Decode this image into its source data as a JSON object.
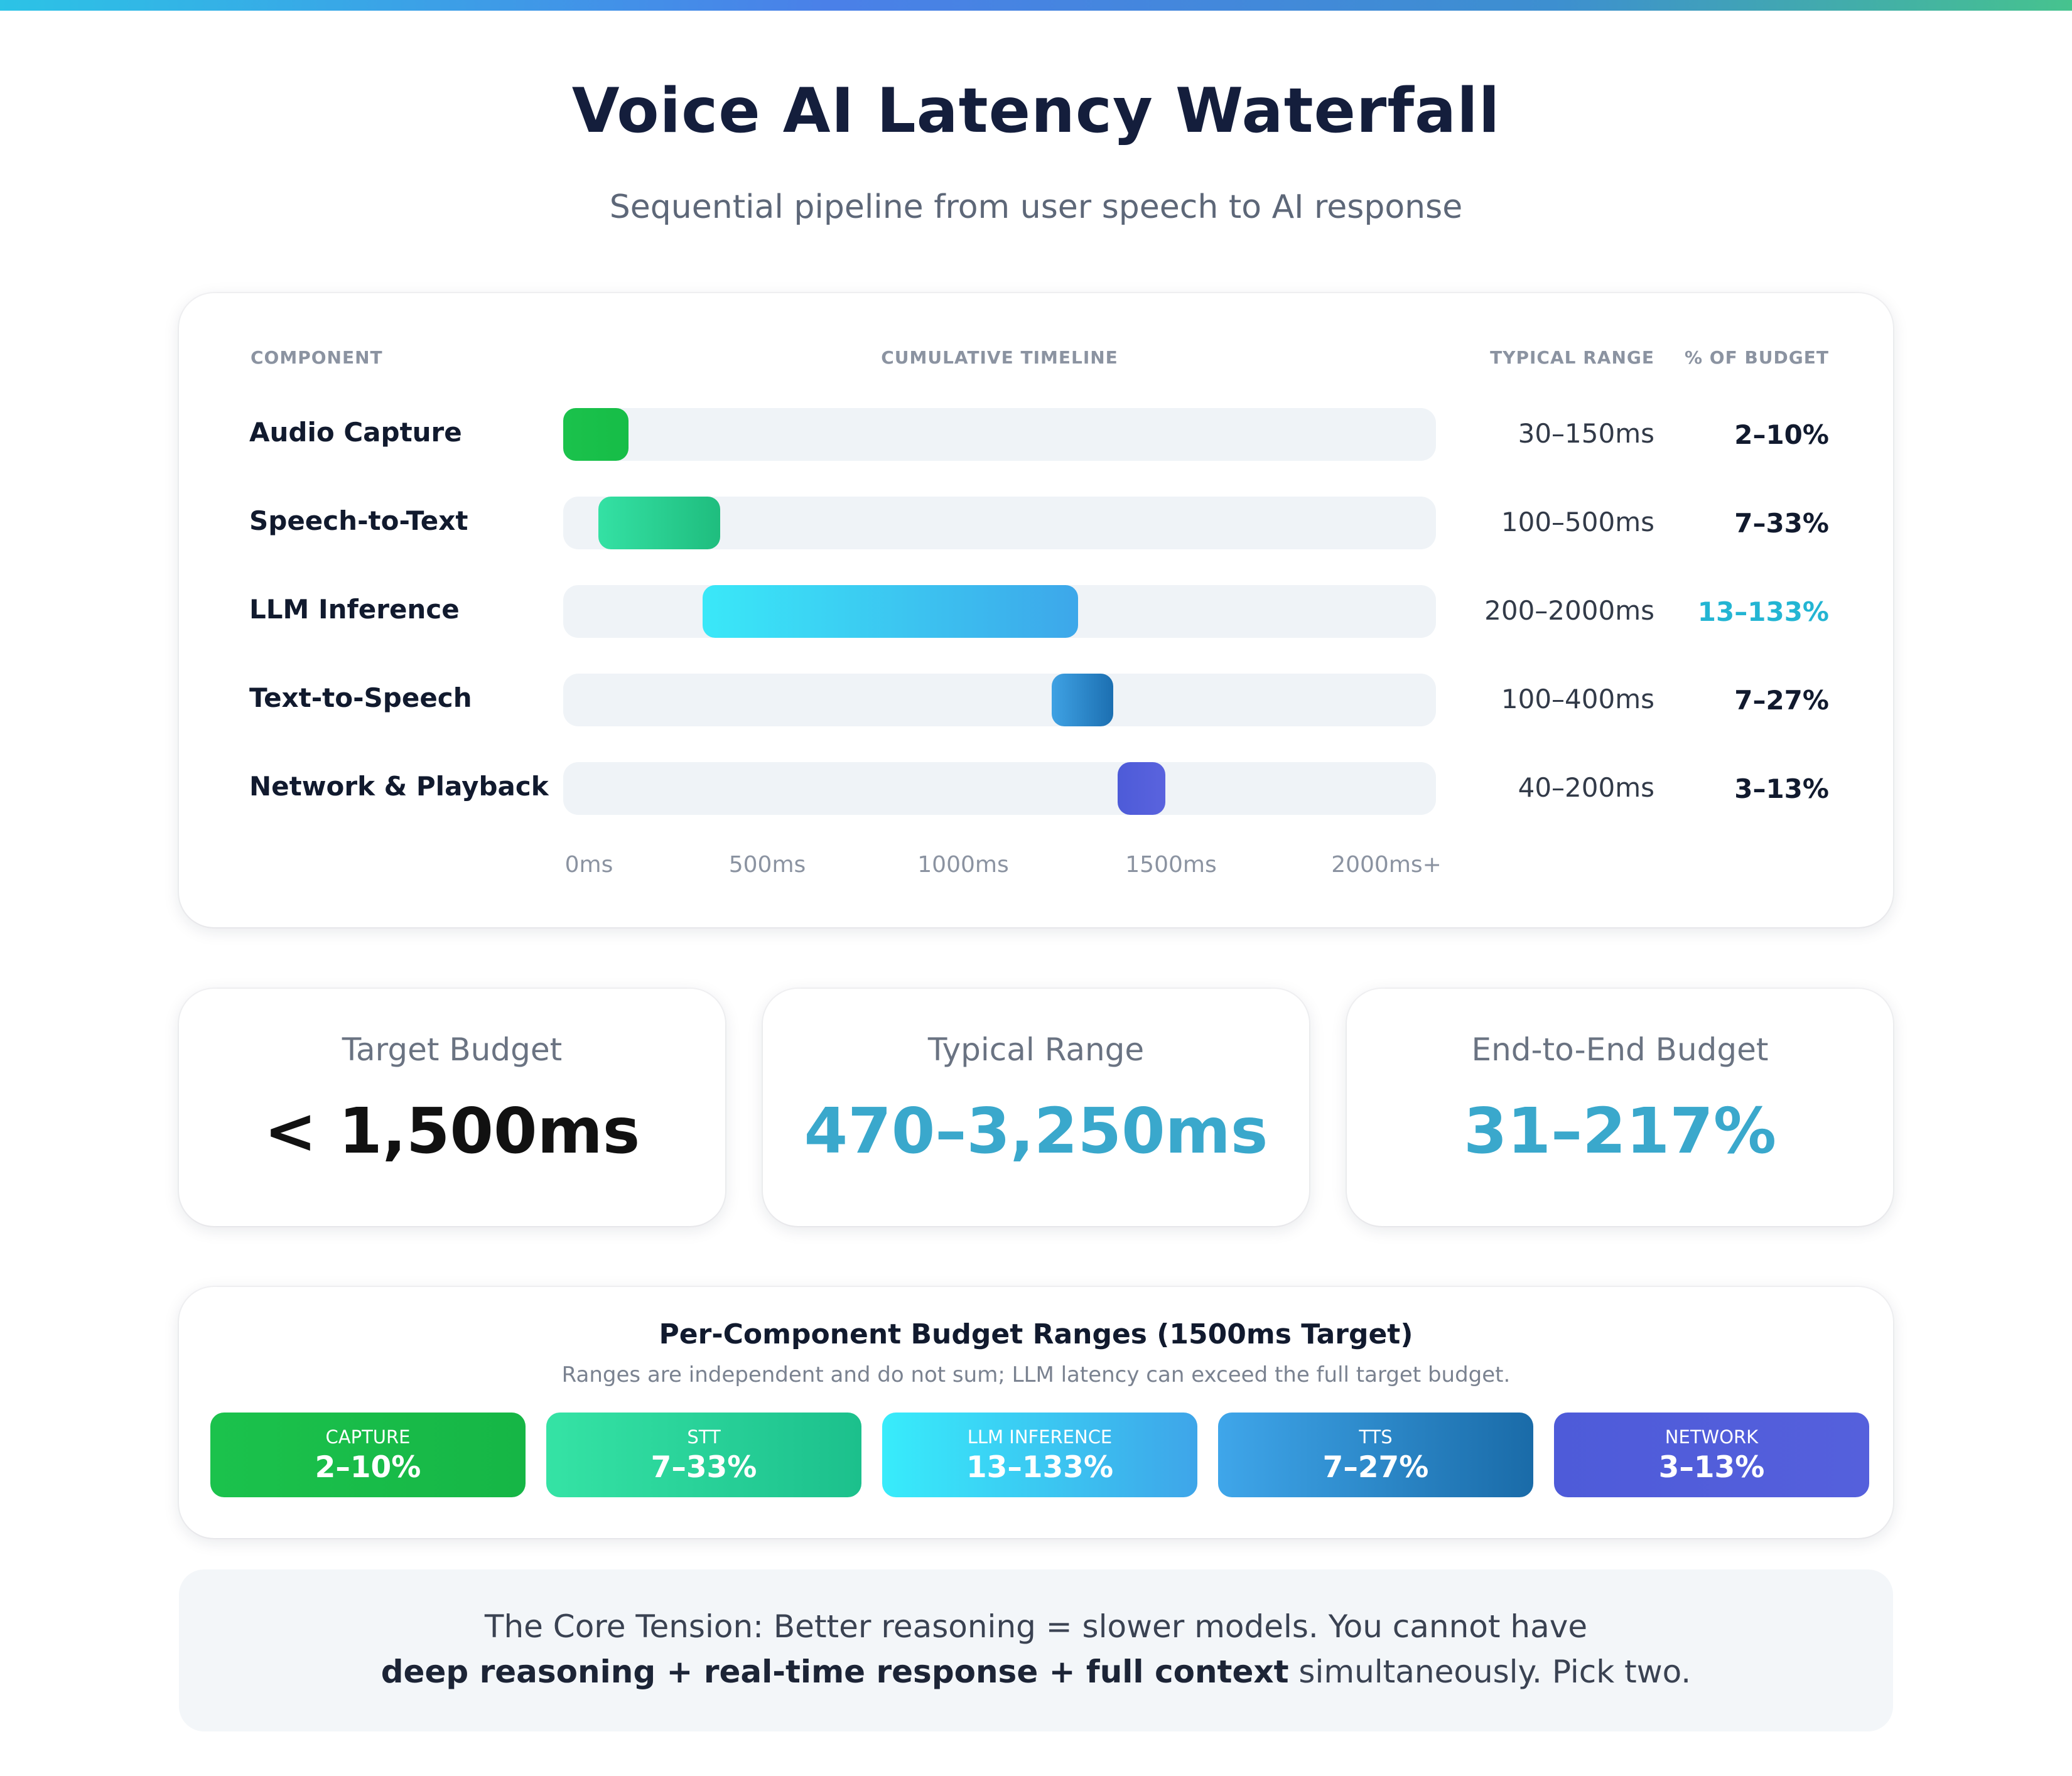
{
  "title": "Voice AI Latency Waterfall",
  "subtitle": "Sequential pipeline from user speech to AI response",
  "columns": {
    "component": "COMPONENT",
    "timeline": "CUMULATIVE TIMELINE",
    "range": "TYPICAL RANGE",
    "budget": "% OF BUDGET"
  },
  "chart_data": {
    "type": "bar",
    "title": "Voice AI Latency Waterfall",
    "xlabel": "",
    "ylabel": "",
    "xlim": [
      0,
      2000
    ],
    "x_ticks": [
      "0ms",
      "500ms",
      "1000ms",
      "1500ms",
      "2000ms+"
    ],
    "series": [
      {
        "name": "Audio Capture",
        "start": 0,
        "end": 150,
        "range": "30–150ms",
        "budget": "2–10%",
        "color": "#1bc24c",
        "color2": "#16bd47"
      },
      {
        "name": "Speech-to-Text",
        "start": 80,
        "end": 360,
        "range": "100–500ms",
        "budget": "7–33%",
        "color": "#34e1a4",
        "color2": "#1fbd7e"
      },
      {
        "name": "LLM Inference",
        "start": 320,
        "end": 1180,
        "range": "200–2000ms",
        "budget": "13–133%",
        "color": "#3ae8f8",
        "color2": "#3da7ea",
        "highlight": true
      },
      {
        "name": "Text-to-Speech",
        "start": 1120,
        "end": 1260,
        "range": "100–400ms",
        "budget": "7–27%",
        "color": "#3fa2e4",
        "color2": "#1c6fb1"
      },
      {
        "name": "Network & Playback",
        "start": 1270,
        "end": 1380,
        "range": "40–200ms",
        "budget": "3–13%",
        "color": "#4d5bd8",
        "color2": "#5a63de"
      }
    ]
  },
  "stats": [
    {
      "label": "Target Budget",
      "value": "< 1,500ms",
      "style": "dark"
    },
    {
      "label": "Typical Range",
      "value": "470–3,250ms",
      "style": "teal"
    },
    {
      "label": "End-to-End Budget",
      "value": "31–217%",
      "style": "teal"
    }
  ],
  "budget_ranges": {
    "title": "Per-Component Budget Ranges (1500ms Target)",
    "subtitle": "Ranges are independent and do not sum; LLM latency can exceed the full target budget.",
    "chips": [
      {
        "name": "CAPTURE",
        "value": "2–10%",
        "color": "#1bc24c",
        "color2": "#16b646"
      },
      {
        "name": "STT",
        "value": "7–33%",
        "color": "#35e3a5",
        "color2": "#1cc08c"
      },
      {
        "name": "LLM INFERENCE",
        "value": "13–133%",
        "color": "#38ecfb",
        "color2": "#3ea5e9"
      },
      {
        "name": "TTS",
        "value": "7–27%",
        "color": "#3fa6ea",
        "color2": "#1a6ba8"
      },
      {
        "name": "NETWORK",
        "value": "3–13%",
        "color": "#4e5bd9",
        "color2": "#5560dc"
      }
    ]
  },
  "tension": {
    "line1": "The Core Tension: Better reasoning = slower models. You cannot have",
    "bold": "deep reasoning + real-time response + full context",
    "rest": " simultaneously. Pick two."
  }
}
